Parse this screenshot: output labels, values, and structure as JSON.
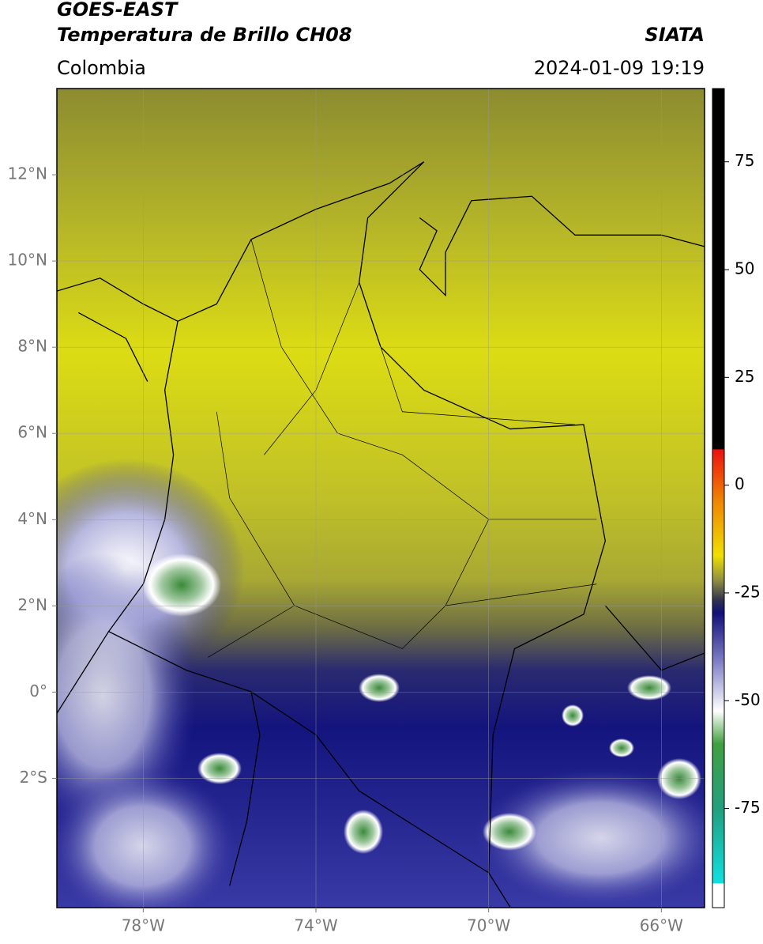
{
  "header": {
    "agency": "GOES-EAST",
    "product": "Temperatura de Brillo CH08",
    "source": "SIATA",
    "region": "Colombia",
    "datetime": "2024-01-09 19:19"
  },
  "map": {
    "xlim": [
      -80,
      -65
    ],
    "ylim": [
      -5,
      14
    ],
    "xticks": [
      {
        "value": -78,
        "label": "78°W"
      },
      {
        "value": -74,
        "label": "74°W"
      },
      {
        "value": -70,
        "label": "70°W"
      },
      {
        "value": -66,
        "label": "66°W"
      }
    ],
    "yticks": [
      {
        "value": 12,
        "label": "12°N"
      },
      {
        "value": 10,
        "label": "10°N"
      },
      {
        "value": 8,
        "label": "8°N"
      },
      {
        "value": 6,
        "label": "6°N"
      },
      {
        "value": 4,
        "label": "4°N"
      },
      {
        "value": 2,
        "label": "2°N"
      },
      {
        "value": 0,
        "label": "0°"
      },
      {
        "value": -2,
        "label": "2°S"
      }
    ],
    "grid": true
  },
  "colorbar": {
    "lim": [
      -98,
      92
    ],
    "ticks": [
      75,
      50,
      25,
      0,
      -25,
      -50,
      -75
    ]
  }
}
